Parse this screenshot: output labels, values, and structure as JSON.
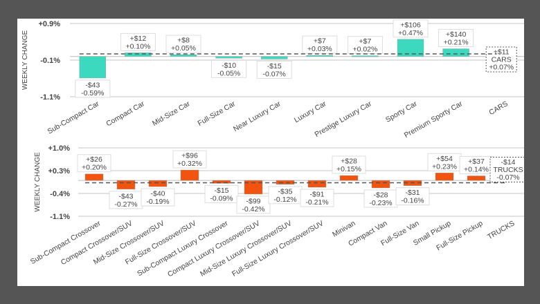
{
  "chart_data": [
    {
      "type": "bar",
      "ylabel": "WEEKLY CHANGE",
      "yticks": [
        "+0.9%",
        "-0.1%",
        "-1.1%"
      ],
      "ytick_values": [
        0.9,
        -0.1,
        -1.1
      ],
      "ylim": [
        -1.1,
        0.9
      ],
      "color": "#3dd9bf",
      "categories": [
        "Sub-Compact Car",
        "Compact Car",
        "Mid-Size Car",
        "Full-Size Car",
        "Near Luxury Car",
        "Luxury Car",
        "Prestige Luxury Car",
        "Sporty Car",
        "Premium Sporty Car",
        "CARS"
      ],
      "values": [
        -0.59,
        0.1,
        0.05,
        -0.05,
        -0.07,
        0.03,
        0.02,
        0.47,
        0.21,
        0.07
      ],
      "dollar_labels": [
        "-$43",
        "+$12",
        "+$8",
        "-$10",
        "-$15",
        "+$7",
        "+$7",
        "+$106",
        "+$140",
        "+$11"
      ],
      "pct_labels": [
        "-0.59%",
        "+0.10%",
        "+0.05%",
        "-0.05%",
        "-0.07%",
        "+0.03%",
        "+0.02%",
        "+0.47%",
        "+0.21%",
        "+0.07%"
      ],
      "total": {
        "category": "CARS",
        "value": 0.07,
        "dollar": "+$11",
        "name": "CARS",
        "pct": "+0.07%"
      }
    },
    {
      "type": "bar",
      "ylabel": "WEEKLY CHANGE",
      "yticks": [
        "+1.0%",
        "+0.3%",
        "-0.4%",
        "-1.1%"
      ],
      "ytick_values": [
        1.0,
        0.3,
        -0.4,
        -1.1
      ],
      "ylim": [
        -1.1,
        1.0
      ],
      "color": "#f25410",
      "categories": [
        "Sub-Compact Crossover",
        "Compact Crossover/SUV",
        "Mid-Size Crossover/SUV",
        "Full-Size Crossover/SUV",
        "Sub-Compact Luxury Crossover",
        "Compact Luxury Crossover/SUV",
        "Mid-Size Luxury Crossover/SUV",
        "Full-Size Luxury Crossover/SUV",
        "Minivan",
        "Compact Van",
        "Full-Size Van",
        "Small Pickup",
        "Full-Size Pickup",
        "TRUCKS"
      ],
      "values": [
        0.2,
        -0.27,
        -0.19,
        0.32,
        -0.09,
        -0.42,
        -0.12,
        -0.21,
        0.15,
        -0.23,
        -0.16,
        0.23,
        0.14,
        -0.07
      ],
      "dollar_labels": [
        "+$26",
        "-$43",
        "-$40",
        "+$96",
        "-$15",
        "-$99",
        "-$35",
        "-$91",
        "+$28",
        "-$28",
        "-$31",
        "+$54",
        "+$37",
        "-$14"
      ],
      "pct_labels": [
        "+0.20%",
        "-0.27%",
        "-0.19%",
        "+0.32%",
        "-0.09%",
        "-0.42%",
        "-0.12%",
        "-0.21%",
        "+0.15%",
        "-0.23%",
        "-0.16%",
        "+0.23%",
        "+0.14%",
        "-0.07%"
      ],
      "total": {
        "category": "TRUCKS",
        "value": -0.07,
        "dollar": "-$14",
        "name": "TRUCKS",
        "pct": "-0.07%"
      }
    }
  ]
}
